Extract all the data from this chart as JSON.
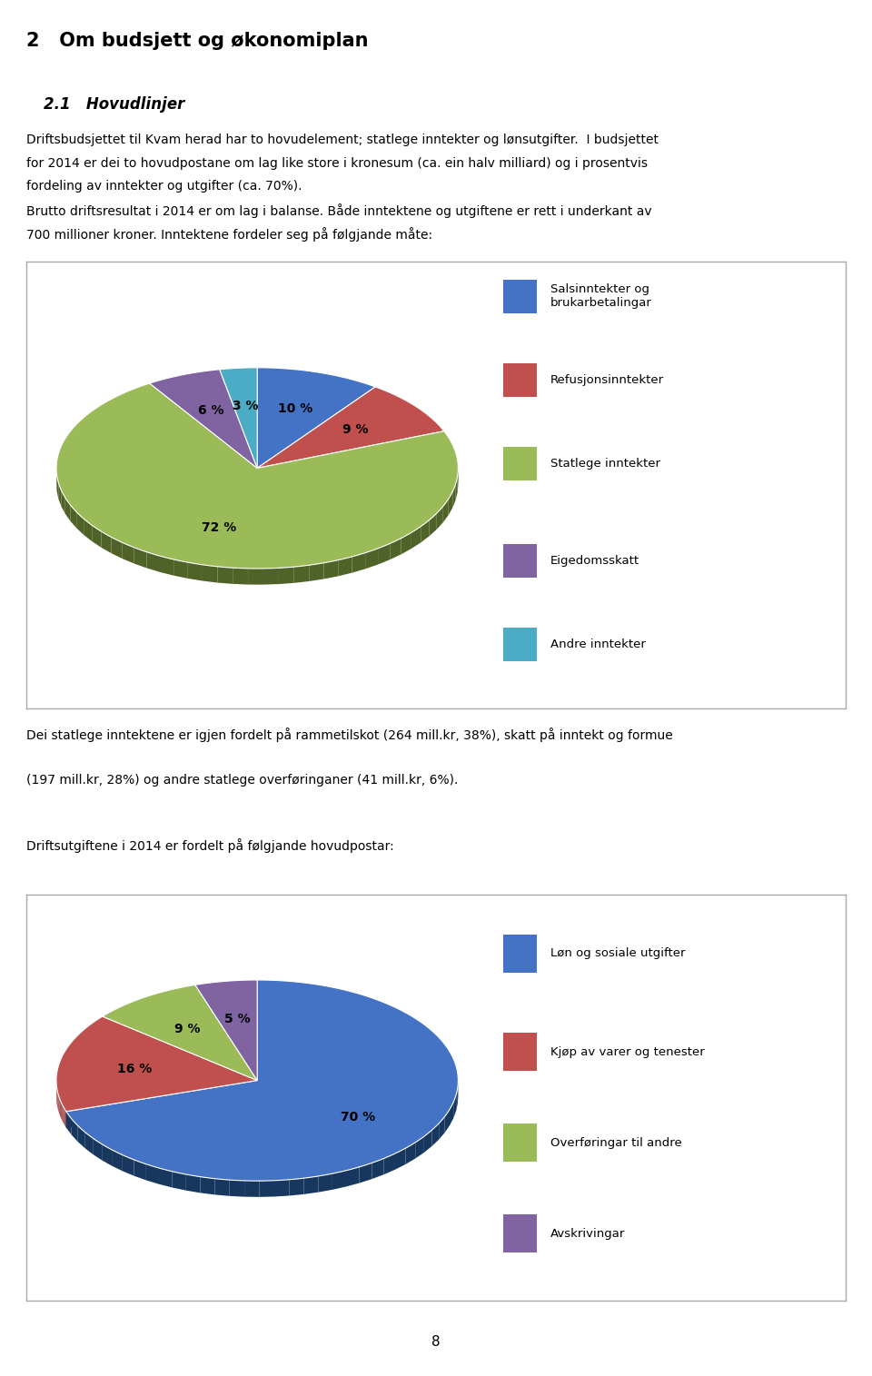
{
  "page_title": "2   Om budsjett og økonomiplan",
  "section_title": "2.1   Hovudlinjer",
  "body_text1_lines": [
    "Driftsbudsjettet til Kvam herad har to hovudelement; statlege inntekter og lønsutgifter.  I budsjettet",
    "for 2014 er dei to hovudpostane om lag like store i kronesum (ca. ein halv milliard) og i prosentvis",
    "fordeling av inntekter og utgifter (ca. 70%).",
    "Brutto driftsresultat i 2014 er om lag i balanse. Både inntektene og utgiftene er rett i underkant av",
    "700 millioner kroner. Inntektene fordeler seg på følgjande måte:"
  ],
  "body_text2_lines": [
    "Dei statlege inntektene er igjen fordelt på rammetilskot (264 mill.kr, 38%), skatt på inntekt og formue",
    "(197 mill.kr, 28%) og andre statlege overføringaner (41 mill.kr, 6%)."
  ],
  "body_text3": "Driftsutgiftene i 2014 er fordelt på følgjande hovudpostar:",
  "page_number": "8",
  "chart1": {
    "slices": [
      10,
      9,
      72,
      6,
      3
    ],
    "labels": [
      "10 %",
      "9 %",
      "72 %",
      "6 %",
      "3 %"
    ],
    "colors": [
      "#4472C4",
      "#C0504D",
      "#9BBB59",
      "#8064A2",
      "#4BACC6"
    ],
    "dark_colors": [
      "#2F5496",
      "#943634",
      "#4F6228",
      "#3F3151",
      "#17375E"
    ],
    "legend_labels": [
      "Salsinntekter og\nbrukarbetalingar",
      "Refusjonsinntekter",
      "Statlege inntekter",
      "Eigedomsskatt",
      "Andre inntekter"
    ],
    "startangle": 90
  },
  "chart2": {
    "slices": [
      70,
      16,
      9,
      5
    ],
    "labels": [
      "70 %",
      "16 %",
      "9 %",
      "5 %"
    ],
    "colors": [
      "#4472C4",
      "#C0504D",
      "#9BBB59",
      "#8064A2"
    ],
    "dark_colors": [
      "#17375E",
      "#943634",
      "#4F6228",
      "#3F3151"
    ],
    "legend_labels": [
      "Løn og sosiale utgifter",
      "Kjøp av varer og tenester",
      "Overføringar til andre",
      "Avskrivingar"
    ],
    "startangle": 90
  }
}
